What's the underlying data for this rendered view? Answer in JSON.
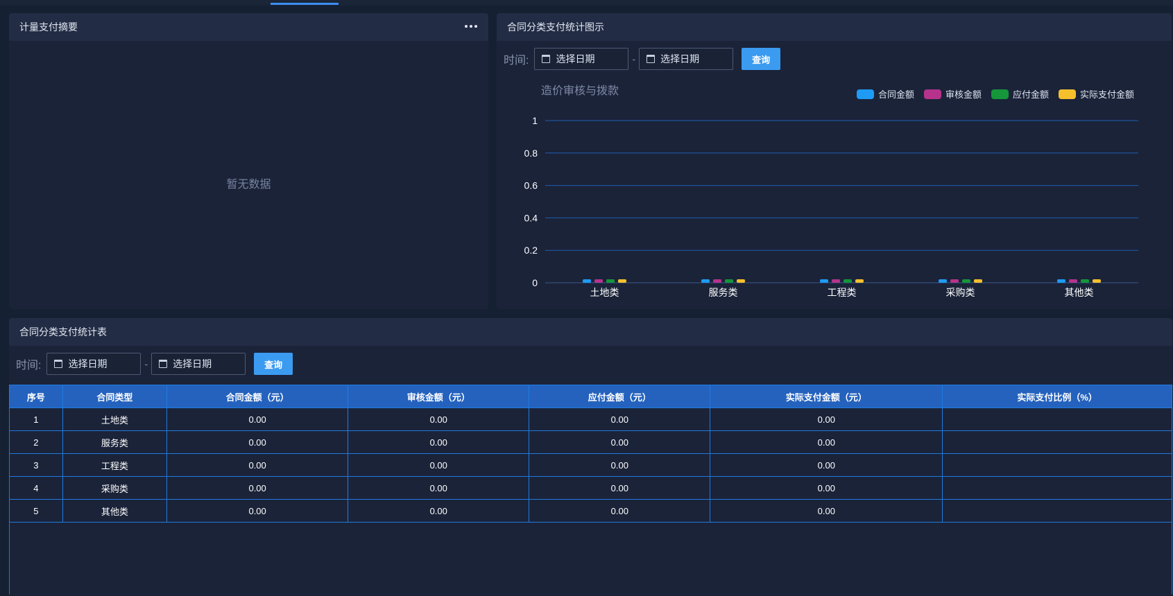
{
  "summary_panel": {
    "title": "计量支付摘要",
    "empty_text": "暂无数据"
  },
  "chart_panel": {
    "title": "合同分类支付统计图示",
    "filter": {
      "label": "时间:",
      "start_placeholder": "选择日期",
      "separator": "-",
      "end_placeholder": "选择日期",
      "query_label": "查询"
    }
  },
  "chart_data": {
    "type": "bar",
    "title": "造价审核与拨款",
    "categories": [
      "土地类",
      "服务类",
      "工程类",
      "采购类",
      "其他类"
    ],
    "series": [
      {
        "name": "合同金额",
        "values": [
          0,
          0,
          0,
          0,
          0
        ],
        "color": "#1e9bf5"
      },
      {
        "name": "审核金额",
        "values": [
          0,
          0,
          0,
          0,
          0
        ],
        "color": "#b6338b"
      },
      {
        "name": "应付金额",
        "values": [
          0,
          0,
          0,
          0,
          0
        ],
        "color": "#15963a"
      },
      {
        "name": "实际支付金额",
        "values": [
          0,
          0,
          0,
          0,
          0
        ],
        "color": "#f6c02c"
      }
    ],
    "ylim": [
      0,
      1
    ],
    "yticks": [
      "0",
      "0.2",
      "0.4",
      "0.6",
      "0.8",
      "1"
    ],
    "grid": true,
    "legend_position": "top-right"
  },
  "table_panel": {
    "title": "合同分类支付统计表",
    "filter": {
      "label": "时间:",
      "start_placeholder": "选择日期",
      "separator": "-",
      "end_placeholder": "选择日期",
      "query_label": "查询"
    },
    "columns": [
      "序号",
      "合同类型",
      "合同金额（元）",
      "审核金额（元）",
      "应付金额（元）",
      "实际支付金额（元）",
      "实际支付比例（%）"
    ],
    "rows": [
      [
        "1",
        "土地类",
        "0.00",
        "0.00",
        "0.00",
        "0.00",
        ""
      ],
      [
        "2",
        "服务类",
        "0.00",
        "0.00",
        "0.00",
        "0.00",
        ""
      ],
      [
        "3",
        "工程类",
        "0.00",
        "0.00",
        "0.00",
        "0.00",
        ""
      ],
      [
        "4",
        "采购类",
        "0.00",
        "0.00",
        "0.00",
        "0.00",
        ""
      ],
      [
        "5",
        "其他类",
        "0.00",
        "0.00",
        "0.00",
        "0.00",
        ""
      ]
    ]
  },
  "colors": {
    "accent": "#3b9bf0",
    "table_header": "#2462be",
    "table_border": "#1f7be0",
    "panel_bg": "#1b2339"
  }
}
